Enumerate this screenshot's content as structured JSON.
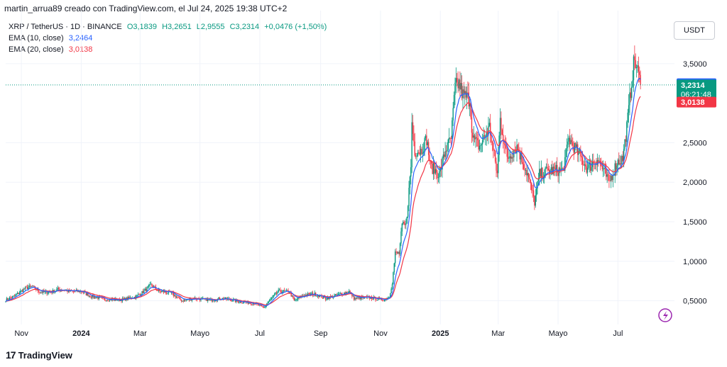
{
  "header": {
    "attribution": "martin_arrua89 creado con TradingView.com, el Jul 24, 2025 19:38 UTC+2"
  },
  "legend": {
    "symbol": "XRP / TetherUS · 1D · BINANCE",
    "ohlc": {
      "o": "O3,1839",
      "h": "H3,2651",
      "l": "L2,9555",
      "c": "C3,2314",
      "chg": "+0,0476 (+1,50%)"
    },
    "ema10_label": "EMA (10, close)",
    "ema10_value": "3,2464",
    "ema20_label": "EMA (20, close)",
    "ema20_value": "3,0138"
  },
  "currency_button": "USDT",
  "price_tags": {
    "ema10": "3,2464",
    "last": "3,2314",
    "countdown": "06:21:48",
    "ema20": "3,0138"
  },
  "footer": {
    "brand": "TradingView",
    "logo": "17"
  },
  "colors": {
    "up": "#089981",
    "down": "#f23645",
    "ema10": "#2962ff",
    "ema20": "#f23645",
    "grid": "#f0f3fa"
  },
  "chart_data": {
    "type": "candlestick",
    "ylim": [
      0.2,
      3.75
    ],
    "y_ticks": [
      "0,5000",
      "1,0000",
      "1,5000",
      "2,0000",
      "2,5000",
      "3,5000"
    ],
    "y_tick_values": [
      0.5,
      1.0,
      1.5,
      2.0,
      2.5,
      3.5
    ],
    "x_ticks": [
      "Nov",
      "2024",
      "Mar",
      "Mayo",
      "Jul",
      "Sep",
      "Nov",
      "2025",
      "Mar",
      "Mayo",
      "Jul"
    ],
    "x_tick_dates": [
      "2023-11-01",
      "2024-01-01",
      "2024-03-01",
      "2024-05-01",
      "2024-07-01",
      "2024-09-01",
      "2024-11-01",
      "2025-01-01",
      "2025-03-01",
      "2025-05-01",
      "2025-07-01"
    ],
    "xlim": [
      "2023-10-16",
      "2025-08-24"
    ],
    "grid": true,
    "close_keypoints": [
      [
        "2023-10-16",
        0.51
      ],
      [
        "2023-10-25",
        0.56
      ],
      [
        "2023-11-05",
        0.66
      ],
      [
        "2023-11-12",
        0.68
      ],
      [
        "2023-11-20",
        0.61
      ],
      [
        "2023-12-01",
        0.61
      ],
      [
        "2023-12-10",
        0.65
      ],
      [
        "2023-12-20",
        0.62
      ],
      [
        "2024-01-01",
        0.62
      ],
      [
        "2024-01-10",
        0.56
      ],
      [
        "2024-01-25",
        0.52
      ],
      [
        "2024-02-10",
        0.51
      ],
      [
        "2024-02-25",
        0.55
      ],
      [
        "2024-03-05",
        0.62
      ],
      [
        "2024-03-12",
        0.7
      ],
      [
        "2024-03-20",
        0.62
      ],
      [
        "2024-04-01",
        0.6
      ],
      [
        "2024-04-13",
        0.5
      ],
      [
        "2024-04-25",
        0.53
      ],
      [
        "2024-05-10",
        0.51
      ],
      [
        "2024-05-25",
        0.53
      ],
      [
        "2024-06-10",
        0.49
      ],
      [
        "2024-06-25",
        0.47
      ],
      [
        "2024-07-05",
        0.41
      ],
      [
        "2024-07-12",
        0.52
      ],
      [
        "2024-07-20",
        0.62
      ],
      [
        "2024-07-31",
        0.62
      ],
      [
        "2024-08-05",
        0.5
      ],
      [
        "2024-08-15",
        0.57
      ],
      [
        "2024-08-25",
        0.59
      ],
      [
        "2024-09-06",
        0.53
      ],
      [
        "2024-09-20",
        0.58
      ],
      [
        "2024-09-30",
        0.62
      ],
      [
        "2024-10-05",
        0.53
      ],
      [
        "2024-10-20",
        0.54
      ],
      [
        "2024-11-05",
        0.51
      ],
      [
        "2024-11-10",
        0.56
      ],
      [
        "2024-11-13",
        0.73
      ],
      [
        "2024-11-16",
        1.1
      ],
      [
        "2024-11-20",
        1.1
      ],
      [
        "2024-11-23",
        1.45
      ],
      [
        "2024-11-27",
        1.45
      ],
      [
        "2024-12-02",
        2.2
      ],
      [
        "2024-12-03",
        2.75
      ],
      [
        "2024-12-06",
        2.4
      ],
      [
        "2024-12-12",
        2.4
      ],
      [
        "2024-12-18",
        2.55
      ],
      [
        "2024-12-22",
        2.2
      ],
      [
        "2024-12-31",
        2.1
      ],
      [
        "2025-01-06",
        2.4
      ],
      [
        "2025-01-12",
        2.55
      ],
      [
        "2025-01-16",
        3.2
      ],
      [
        "2025-01-20",
        3.25
      ],
      [
        "2025-01-24",
        3.1
      ],
      [
        "2025-01-31",
        3.05
      ],
      [
        "2025-02-03",
        2.55
      ],
      [
        "2025-02-10",
        2.45
      ],
      [
        "2025-02-20",
        2.7
      ],
      [
        "2025-02-28",
        2.1
      ],
      [
        "2025-03-03",
        2.8
      ],
      [
        "2025-03-10",
        2.3
      ],
      [
        "2025-03-20",
        2.45
      ],
      [
        "2025-03-31",
        2.1
      ],
      [
        "2025-04-07",
        1.75
      ],
      [
        "2025-04-12",
        2.1
      ],
      [
        "2025-04-22",
        2.15
      ],
      [
        "2025-05-06",
        2.15
      ],
      [
        "2025-05-12",
        2.55
      ],
      [
        "2025-05-20",
        2.4
      ],
      [
        "2025-05-31",
        2.17
      ],
      [
        "2025-06-10",
        2.3
      ],
      [
        "2025-06-22",
        2.0
      ],
      [
        "2025-06-30",
        2.25
      ],
      [
        "2025-07-06",
        2.3
      ],
      [
        "2025-07-11",
        2.8
      ],
      [
        "2025-07-16",
        3.4
      ],
      [
        "2025-07-18",
        3.55
      ],
      [
        "2025-07-22",
        3.35
      ],
      [
        "2025-07-24",
        3.23
      ]
    ]
  }
}
